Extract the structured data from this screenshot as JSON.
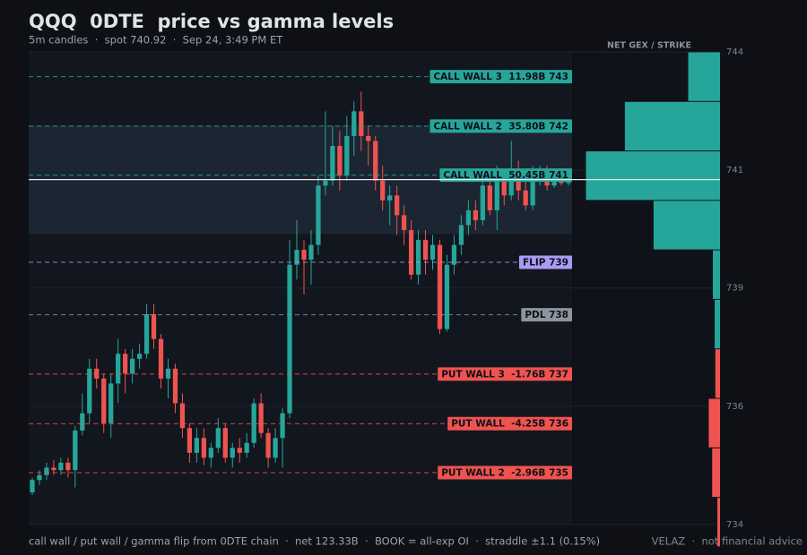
{
  "chart_data": {
    "type": "candlestick",
    "title": "QQQ  0DTE  price vs gamma levels",
    "subtitle": "5m candles  ·  spot 740.92  ·  Sep 24, 3:49 PM ET",
    "footer": "call wall / put wall / gamma flip from 0DTE chain  ·  net 123.33B  ·  BOOK = all-exp OI  ·  straddle ±1.1 (0.15%)",
    "footer_right": "VELAZ  ·  not financial advice",
    "ylim": [
      733.95,
      743.5
    ],
    "yticks": [
      {
        "value": 733.95,
        "label": "734"
      },
      {
        "value": 736.34,
        "label": "736"
      },
      {
        "value": 738.73,
        "label": "739"
      },
      {
        "value": 741.11,
        "label": "741"
      },
      {
        "value": 743.5,
        "label": "744"
      }
    ],
    "grid": true,
    "spot": 740.92,
    "straddle_band": [
      739.82,
      742.02
    ],
    "up_color": "#26a69a",
    "down_color": "#ef5350",
    "candles": {
      "open": [
        734.6,
        734.85,
        734.95,
        735.1,
        735.05,
        735.2,
        735.05,
        735.85,
        736.2,
        737.1,
        736.9,
        736.0,
        736.8,
        737.4,
        737.0,
        737.3,
        737.4,
        738.2,
        737.7,
        736.9,
        737.1,
        736.4,
        735.9,
        735.4,
        735.7,
        735.3,
        735.5,
        735.9,
        735.3,
        735.5,
        735.4,
        735.6,
        736.4,
        735.8,
        735.3,
        735.7,
        736.2,
        739.2,
        739.5,
        739.3,
        739.6,
        740.8,
        740.9,
        741.6,
        741.0,
        741.8,
        742.3,
        741.8,
        741.7,
        740.9,
        740.5,
        740.6,
        740.2,
        739.9,
        739.0,
        739.7,
        739.3,
        739.6,
        737.9,
        739.2,
        739.6,
        740.0,
        740.3,
        740.1,
        740.8,
        740.3,
        740.9,
        740.6,
        741.1,
        740.7,
        740.4,
        741.0,
        741.1,
        740.8,
        741.0,
        740.85
      ],
      "high": [
        734.9,
        735.05,
        735.2,
        735.25,
        735.3,
        735.3,
        735.95,
        736.6,
        737.3,
        737.3,
        737.0,
        737.0,
        737.7,
        737.5,
        737.5,
        737.6,
        738.4,
        738.4,
        737.8,
        737.3,
        737.2,
        736.6,
        736.0,
        735.9,
        735.9,
        735.6,
        736.1,
        736.0,
        735.6,
        735.7,
        735.8,
        736.5,
        736.6,
        735.9,
        735.9,
        736.3,
        739.7,
        740.1,
        739.7,
        739.9,
        741.0,
        742.3,
        742.0,
        741.9,
        742.2,
        742.5,
        742.7,
        742.0,
        741.8,
        741.2,
        740.8,
        740.8,
        740.4,
        740.1,
        739.9,
        739.9,
        739.8,
        739.7,
        739.4,
        739.8,
        740.2,
        740.5,
        740.5,
        741.0,
        741.0,
        741.2,
        741.1,
        741.7,
        741.3,
        740.9,
        741.2,
        741.2,
        741.2,
        741.1,
        741.15,
        741.1
      ],
      "low": [
        734.55,
        734.75,
        734.85,
        734.95,
        734.95,
        734.9,
        734.7,
        735.75,
        736.0,
        736.7,
        735.8,
        735.7,
        736.4,
        736.6,
        736.8,
        737.1,
        737.3,
        737.5,
        736.7,
        736.5,
        736.2,
        735.7,
        735.2,
        735.2,
        735.15,
        735.1,
        735.4,
        735.2,
        735.1,
        735.2,
        735.3,
        735.5,
        735.7,
        735.1,
        735.2,
        735.1,
        736.1,
        738.9,
        738.6,
        738.8,
        739.4,
        740.6,
        740.8,
        740.7,
        740.9,
        741.4,
        741.5,
        741.2,
        740.7,
        740.3,
        740.0,
        739.8,
        739.6,
        738.9,
        738.8,
        739.0,
        739.1,
        737.8,
        737.85,
        739.0,
        739.4,
        739.8,
        739.9,
        740.0,
        740.2,
        739.9,
        740.4,
        740.5,
        740.5,
        740.3,
        740.3,
        740.8,
        740.7,
        740.75,
        740.8,
        740.8
      ],
      "close": [
        734.85,
        734.95,
        735.1,
        735.05,
        735.2,
        735.05,
        735.85,
        736.2,
        737.1,
        736.9,
        736.0,
        736.8,
        737.4,
        737.0,
        737.3,
        737.4,
        738.2,
        737.7,
        736.9,
        737.1,
        736.4,
        735.9,
        735.4,
        735.7,
        735.3,
        735.5,
        735.9,
        735.3,
        735.5,
        735.4,
        735.6,
        736.4,
        735.8,
        735.3,
        735.7,
        736.2,
        739.2,
        739.5,
        739.3,
        739.6,
        740.8,
        740.9,
        741.6,
        741.0,
        741.8,
        742.3,
        741.8,
        741.7,
        740.9,
        740.5,
        740.6,
        740.2,
        739.9,
        739.0,
        739.7,
        739.3,
        739.6,
        737.9,
        739.2,
        739.6,
        740.0,
        740.3,
        740.1,
        740.8,
        740.3,
        740.9,
        740.6,
        741.1,
        740.7,
        740.4,
        741.0,
        741.1,
        740.8,
        741.0,
        740.85,
        740.92
      ]
    },
    "levels": [
      {
        "label": "CALL WALL 3  11.98B 743",
        "value": 743,
        "color": "#26a69a"
      },
      {
        "label": "CALL WALL 2  35.80B 742",
        "value": 742,
        "color": "#26a69a"
      },
      {
        "label": "CALL WALL  50.45B 741",
        "value": 741.01,
        "color": "#26a69a"
      },
      {
        "label": "FLIP 739",
        "value": 739.25,
        "color": "#a99bf5"
      },
      {
        "label": "PDL 738",
        "value": 738.19,
        "color": "#8e959e"
      },
      {
        "label": "PUT WALL 3  -1.76B 737",
        "value": 736.99,
        "color": "#ef5350"
      },
      {
        "label": "PUT WALL  -4.25B 736",
        "value": 735.99,
        "color": "#ef5350"
      },
      {
        "label": "PUT WALL 2  -2.96B 735",
        "value": 735,
        "color": "#ef5350"
      }
    ],
    "gex": {
      "title": "NET GEX / STRIKE",
      "strikes": [
        743,
        742,
        741,
        740,
        739,
        738,
        737,
        736,
        735,
        734
      ],
      "values": [
        11.98,
        35.8,
        50.45,
        25,
        2.7,
        2,
        -1.76,
        -4.25,
        -2.96,
        -1
      ],
      "xlim": [
        0,
        55
      ],
      "positive_color": "#26a69a",
      "negative_color": "#ef5350"
    }
  }
}
